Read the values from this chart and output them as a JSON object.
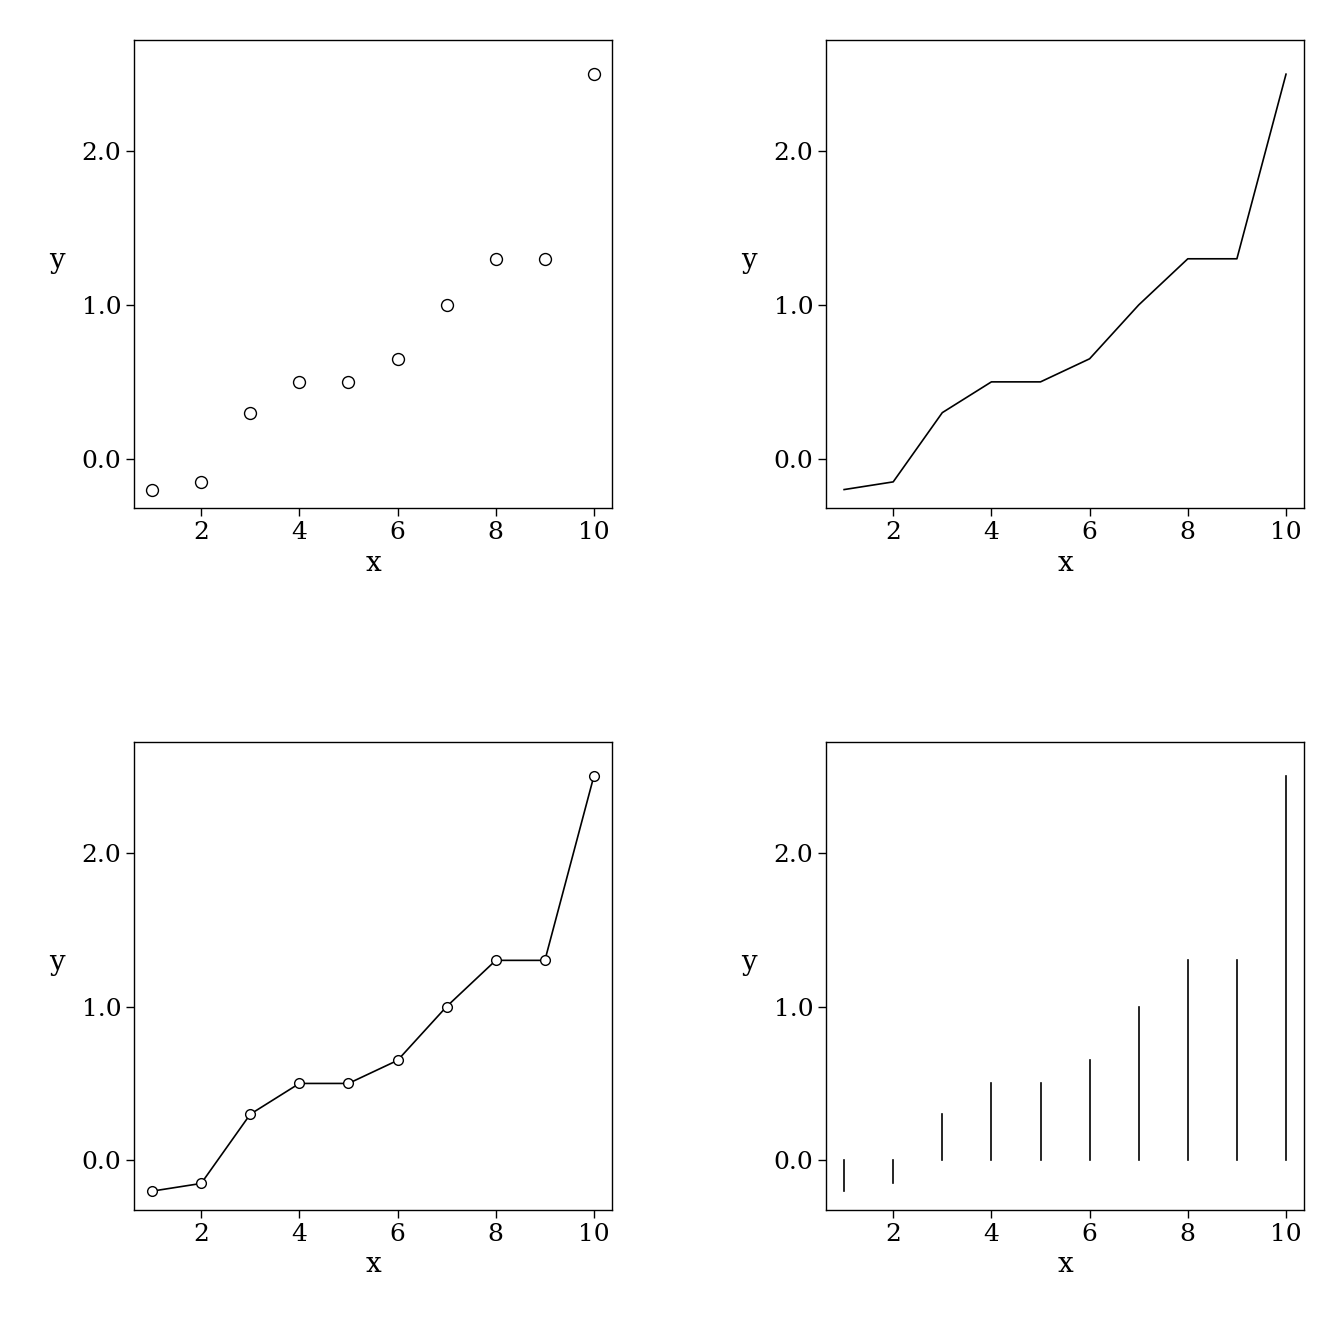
{
  "x": [
    1,
    2,
    3,
    4,
    5,
    6,
    7,
    8,
    9,
    10
  ],
  "y": [
    -0.2,
    -0.15,
    0.3,
    0.5,
    0.5,
    0.65,
    1.0,
    1.3,
    1.3,
    2.5
  ],
  "xlabel": "x",
  "ylabel": "y",
  "xlim": [
    0.64,
    10.36
  ],
  "ylim": [
    -0.32,
    2.72
  ],
  "background_color": "#ffffff",
  "line_color": "#000000",
  "marker_facecolor": "white",
  "marker_edgecolor": "black",
  "marker_size": 7,
  "line_width": 1.2,
  "tick_labelsize": 18,
  "axis_labelsize": 20,
  "xticks": [
    2,
    4,
    6,
    8,
    10
  ],
  "yticks": [
    0.0,
    1.0,
    2.0
  ],
  "ytick_labels": [
    "0.0",
    "1.0",
    "2.0"
  ]
}
